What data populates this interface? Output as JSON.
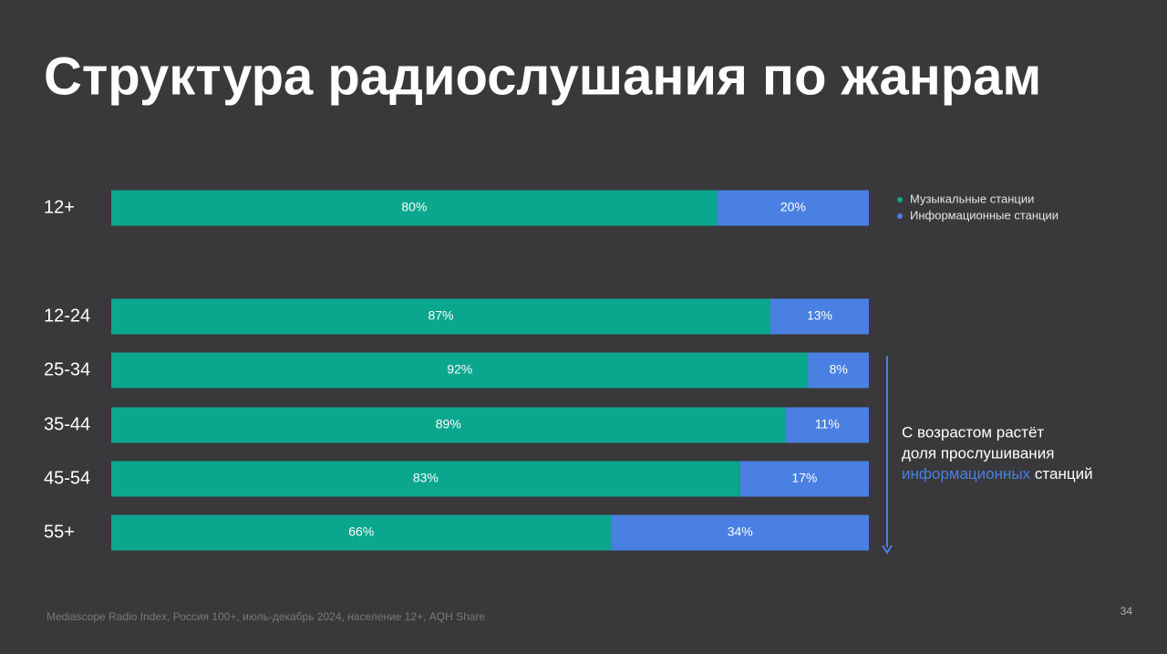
{
  "chart_data": {
    "type": "stacked_bar_horizontal",
    "title": "Структура радиослушания по жанрам",
    "categories": [
      "12+",
      "12-24",
      "25-34",
      "35-44",
      "45-54",
      "55+"
    ],
    "series": [
      {
        "name": "Музыкальные станции",
        "color": "#0ba68e",
        "values": [
          80,
          87,
          92,
          89,
          83,
          66
        ],
        "value_labels": [
          "80%",
          "87%",
          "92%",
          "89%",
          "83%",
          "66%"
        ]
      },
      {
        "name": "Информационные станции",
        "color": "#4a80e2",
        "values": [
          20,
          13,
          8,
          11,
          17,
          34
        ],
        "value_labels": [
          "20%",
          "13%",
          "8%",
          "11%",
          "17%",
          "34%"
        ]
      }
    ],
    "xlim": [
      0,
      100
    ],
    "legend": "top-right",
    "annotation": [
      "С возрастом растёт",
      "доля прослушивания",
      "информационных",
      "станций"
    ],
    "source": "Mediascope Radio Index, Россия 100+, июль-декабрь 2024, население 12+, AQH Share",
    "page_number": "34"
  }
}
